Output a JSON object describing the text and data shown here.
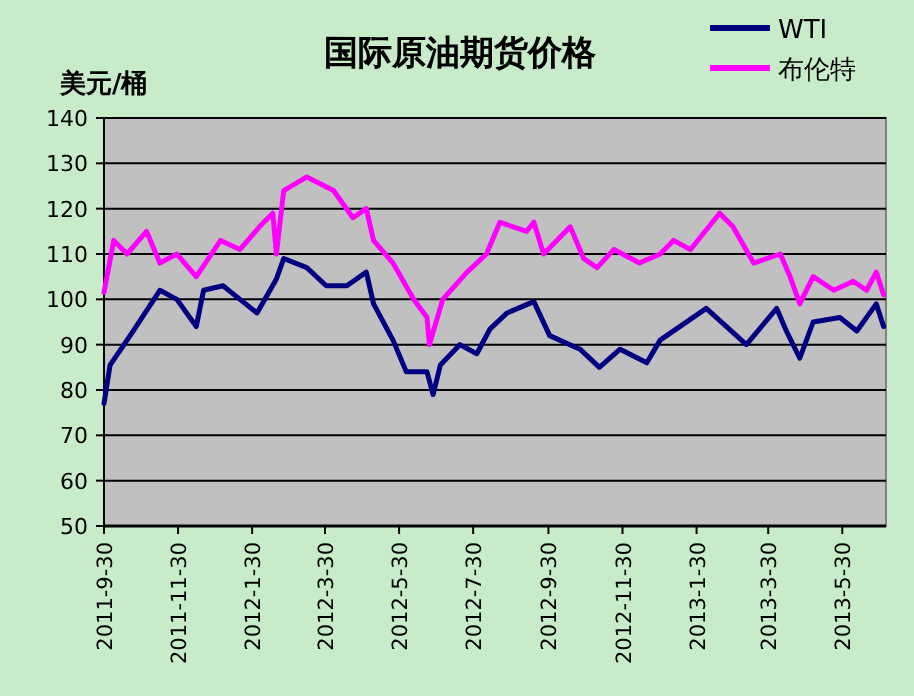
{
  "chart_data": {
    "type": "line",
    "title": "国际原油期货价格",
    "ylabel": "美元/桶",
    "xlim": [
      "2011-09-30",
      "2013-07-05"
    ],
    "ylim": [
      50,
      140
    ],
    "yticks": [
      50,
      60,
      70,
      80,
      90,
      100,
      110,
      120,
      130,
      140
    ],
    "xticks": [
      {
        "value": "2011-09-30",
        "label": "2011-9-30"
      },
      {
        "value": "2011-11-30",
        "label": "2011-11-30"
      },
      {
        "value": "2012-01-30",
        "label": "2012-1-30"
      },
      {
        "value": "2012-03-30",
        "label": "2012-3-30"
      },
      {
        "value": "2012-05-30",
        "label": "2012-5-30"
      },
      {
        "value": "2012-07-30",
        "label": "2012-7-30"
      },
      {
        "value": "2012-09-30",
        "label": "2012-9-30"
      },
      {
        "value": "2012-11-30",
        "label": "2012-11-30"
      },
      {
        "value": "2013-01-30",
        "label": "2013-1-30"
      },
      {
        "value": "2013-03-30",
        "label": "2013-3-30"
      },
      {
        "value": "2013-05-30",
        "label": "2013-5-30"
      }
    ],
    "grid": "y",
    "legend": "top right",
    "series": [
      {
        "name": "WTI",
        "color": "#000080",
        "x": [
          "2011-09-30",
          "2011-10-05",
          "2011-10-24",
          "2011-11-15",
          "2011-11-29",
          "2011-12-15",
          "2011-12-21",
          "2012-01-06",
          "2012-01-20",
          "2012-02-03",
          "2012-02-19",
          "2012-02-25",
          "2012-03-15",
          "2012-03-31",
          "2012-04-17",
          "2012-05-03",
          "2012-05-09",
          "2012-05-25",
          "2012-06-05",
          "2012-06-22",
          "2012-06-27",
          "2012-07-03",
          "2012-07-19",
          "2012-08-02",
          "2012-08-13",
          "2012-08-27",
          "2012-09-18",
          "2012-10-01",
          "2012-10-26",
          "2012-11-11",
          "2012-11-28",
          "2012-12-20",
          "2012-12-31",
          "2013-02-07",
          "2013-03-12",
          "2013-04-06",
          "2013-04-14",
          "2013-04-25",
          "2013-05-06",
          "2013-05-28",
          "2013-06-11",
          "2013-06-27",
          "2013-07-03"
        ],
        "values": [
          77,
          85.5,
          93,
          102,
          100,
          94,
          102,
          103,
          100,
          97,
          104.5,
          109,
          107,
          103,
          103,
          106,
          99,
          91,
          84,
          84,
          79,
          85.5,
          90,
          88,
          93.5,
          97,
          99.5,
          92,
          89,
          85,
          89,
          86,
          91,
          98,
          90,
          98,
          93,
          87,
          95,
          96,
          93,
          99,
          94
        ]
      },
      {
        "name": "布伦特",
        "color": "#ff00ff",
        "x": [
          "2011-09-30",
          "2011-10-08",
          "2011-10-19",
          "2011-11-04",
          "2011-11-15",
          "2011-11-29",
          "2011-12-15",
          "2012-01-04",
          "2012-01-20",
          "2012-02-05",
          "2012-02-16",
          "2012-02-19",
          "2012-02-25",
          "2012-03-15",
          "2012-04-06",
          "2012-04-22",
          "2012-05-03",
          "2012-05-09",
          "2012-05-25",
          "2012-06-11",
          "2012-06-22",
          "2012-06-24",
          "2012-07-05",
          "2012-07-25",
          "2012-08-10",
          "2012-08-21",
          "2012-09-12",
          "2012-09-18",
          "2012-09-26",
          "2012-10-18",
          "2012-10-29",
          "2012-11-09",
          "2012-11-23",
          "2012-12-14",
          "2012-12-31",
          "2013-01-11",
          "2013-01-25",
          "2013-02-18",
          "2013-03-01",
          "2013-03-18",
          "2013-04-09",
          "2013-04-17",
          "2013-04-25",
          "2013-05-06",
          "2013-05-23",
          "2013-06-08",
          "2013-06-19",
          "2013-06-27",
          "2013-07-03"
        ],
        "values": [
          101.5,
          113,
          110,
          115,
          108,
          110,
          105,
          113,
          111,
          116,
          119,
          110,
          124,
          127,
          124,
          118,
          120,
          113,
          108,
          100,
          96,
          90,
          100,
          106,
          110,
          117,
          115,
          117,
          110,
          116,
          109,
          107,
          111,
          108,
          110,
          113,
          111,
          119,
          116,
          108,
          110,
          105,
          99,
          105,
          102,
          104,
          102,
          106,
          101
        ]
      }
    ]
  }
}
